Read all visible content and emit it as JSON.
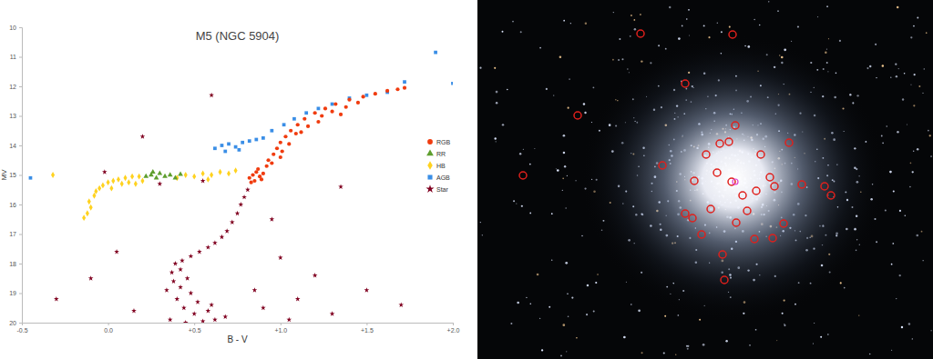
{
  "chart_data": {
    "type": "scatter",
    "title": "M5 (NGC 5904)",
    "x_label": "B - V",
    "y_label": "MV",
    "xlim": [
      -0.5,
      2.0
    ],
    "ylim": [
      10,
      20
    ],
    "xticks": [
      -0.5,
      {
        "value": 0.0,
        "label": "0.0"
      },
      {
        "value": 0.5,
        "label": "+0.5"
      },
      {
        "value": 1.0,
        "label": "+1.0"
      },
      {
        "value": 1.5,
        "label": "+1.5"
      },
      {
        "value": 2.0,
        "label": "+2.0"
      }
    ],
    "yticks": [
      10,
      11,
      12,
      13,
      14,
      15,
      16,
      17,
      18,
      19,
      20
    ],
    "grid": false,
    "legend": "right",
    "series": [
      {
        "name": "RGB",
        "color": "#f03c0f",
        "marker": "circle",
        "x": [
          0.82,
          0.84,
          0.86,
          0.88,
          0.85,
          0.9,
          0.87,
          0.83,
          0.89,
          0.92,
          0.93,
          0.96,
          0.98,
          1.0,
          1.03,
          1.06,
          1.1,
          1.14,
          1.2,
          1.26,
          1.32,
          1.4,
          1.48,
          1.55,
          1.62,
          1.68,
          1.72,
          1.01,
          1.05,
          1.09,
          1.16,
          1.24,
          1.3,
          1.38,
          1.45,
          0.95,
          1.12,
          1.22,
          1.35,
          1.0
        ],
        "values": [
          15.1,
          15.0,
          14.9,
          15.05,
          15.2,
          14.95,
          14.8,
          15.25,
          15.15,
          14.7,
          14.5,
          14.3,
          14.1,
          13.9,
          13.7,
          13.5,
          13.3,
          13.1,
          12.9,
          12.75,
          12.6,
          12.45,
          12.35,
          12.25,
          12.15,
          12.1,
          12.05,
          14.2,
          13.95,
          13.6,
          13.35,
          13.0,
          12.85,
          12.7,
          12.55,
          14.6,
          13.55,
          13.2,
          12.95,
          14.4
        ]
      },
      {
        "name": "RR",
        "color": "#5e9e2e",
        "marker": "triangle",
        "x": [
          0.22,
          0.25,
          0.28,
          0.3,
          0.33,
          0.36,
          0.39,
          0.42,
          0.26
        ],
        "values": [
          15.05,
          15.0,
          15.1,
          14.95,
          15.05,
          15.0,
          15.1,
          14.98,
          14.9
        ]
      },
      {
        "name": "HB",
        "color": "#ffd21f",
        "marker": "diamond",
        "x": [
          -0.12,
          -0.1,
          -0.11,
          -0.08,
          -0.07,
          -0.05,
          -0.03,
          0.0,
          0.03,
          0.06,
          0.1,
          0.14,
          0.18,
          0.45,
          0.5,
          0.55,
          0.6,
          0.65,
          0.7,
          0.74,
          0.4,
          0.08,
          0.12,
          0.02,
          -0.14,
          0.16,
          0.58,
          0.2,
          -0.32
        ],
        "values": [
          16.3,
          16.1,
          15.9,
          15.7,
          15.55,
          15.45,
          15.35,
          15.25,
          15.2,
          15.15,
          15.1,
          15.05,
          15.05,
          15.0,
          15.05,
          14.95,
          15.0,
          14.9,
          14.95,
          14.85,
          15.1,
          15.3,
          15.25,
          15.45,
          16.45,
          15.3,
          15.15,
          15.2,
          15.0
        ]
      },
      {
        "name": "AGB",
        "color": "#3a8ee6",
        "marker": "square",
        "x": [
          0.62,
          0.66,
          0.7,
          0.74,
          0.78,
          0.82,
          0.86,
          0.9,
          0.68,
          0.76,
          0.95,
          1.02,
          1.08,
          1.15,
          1.22,
          1.3,
          1.4,
          1.5,
          1.62,
          1.72,
          1.9,
          2.0,
          -0.45
        ],
        "values": [
          14.1,
          14.0,
          13.95,
          14.05,
          13.9,
          13.85,
          13.8,
          13.75,
          14.2,
          14.15,
          13.5,
          13.3,
          13.1,
          12.9,
          12.75,
          12.6,
          12.4,
          12.3,
          12.2,
          11.85,
          10.85,
          11.9,
          15.1
        ]
      },
      {
        "name": "Star",
        "color": "#800020",
        "marker": "star",
        "x": [
          0.45,
          0.55,
          0.62,
          0.5,
          0.58,
          0.44,
          0.52,
          0.4,
          0.48,
          0.42,
          0.38,
          0.46,
          0.37,
          0.42,
          0.39,
          0.43,
          0.48,
          0.53,
          0.58,
          0.62,
          0.66,
          0.69,
          0.72,
          0.75,
          0.77,
          0.79,
          0.81,
          0.68,
          0.36,
          0.6,
          0.34,
          0.05,
          -0.1,
          0.9,
          1.1,
          1.3,
          1.5,
          1.2,
          1.0,
          0.95,
          1.35,
          0.2,
          0.6,
          1.7,
          -0.3,
          0.15,
          -0.02,
          0.3,
          0.55,
          1.05,
          0.85
        ],
        "values": [
          20.0,
          19.95,
          19.9,
          19.7,
          19.6,
          19.5,
          19.3,
          19.2,
          19.0,
          18.8,
          18.6,
          18.5,
          18.3,
          18.2,
          18.0,
          17.9,
          17.75,
          17.6,
          17.45,
          17.3,
          17.1,
          16.9,
          16.6,
          16.3,
          16.0,
          15.75,
          15.5,
          19.8,
          19.9,
          19.4,
          18.9,
          17.6,
          18.5,
          19.5,
          19.2,
          19.7,
          18.9,
          18.4,
          17.8,
          16.5,
          15.4,
          13.7,
          12.3,
          19.4,
          19.2,
          19.6,
          14.9,
          15.3,
          15.2,
          19.9,
          18.9
        ]
      }
    ]
  }
}
